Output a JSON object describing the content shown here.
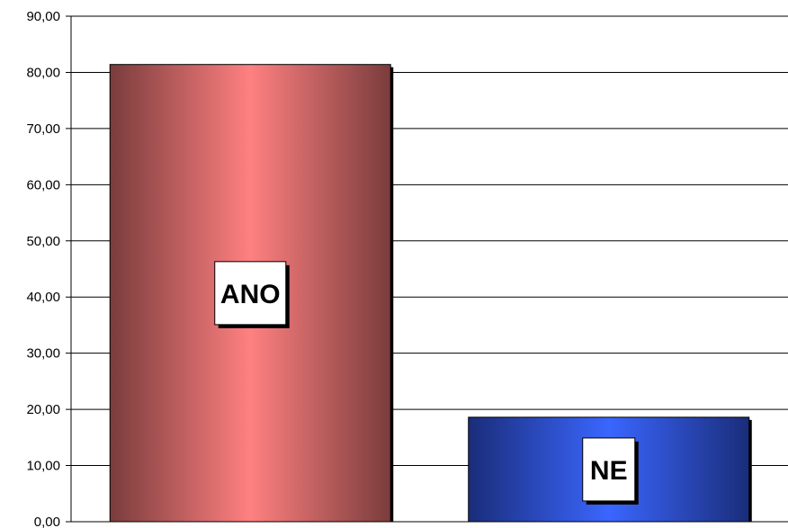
{
  "chart_data": {
    "type": "bar",
    "categories": [
      "ANO",
      "NE"
    ],
    "values": [
      81.4,
      18.6
    ],
    "ylim": [
      0,
      90
    ],
    "yticks": [
      "0,00",
      "10,00",
      "20,00",
      "30,00",
      "40,00",
      "50,00",
      "60,00",
      "70,00",
      "80,00",
      "90,00"
    ],
    "grid": true,
    "legend": "none",
    "colors": {
      "ANO": {
        "edge": "#7a3c3c",
        "center": "#ff8080"
      },
      "NE": {
        "edge": "#1a2d7a",
        "center": "#3a66ff"
      }
    }
  }
}
